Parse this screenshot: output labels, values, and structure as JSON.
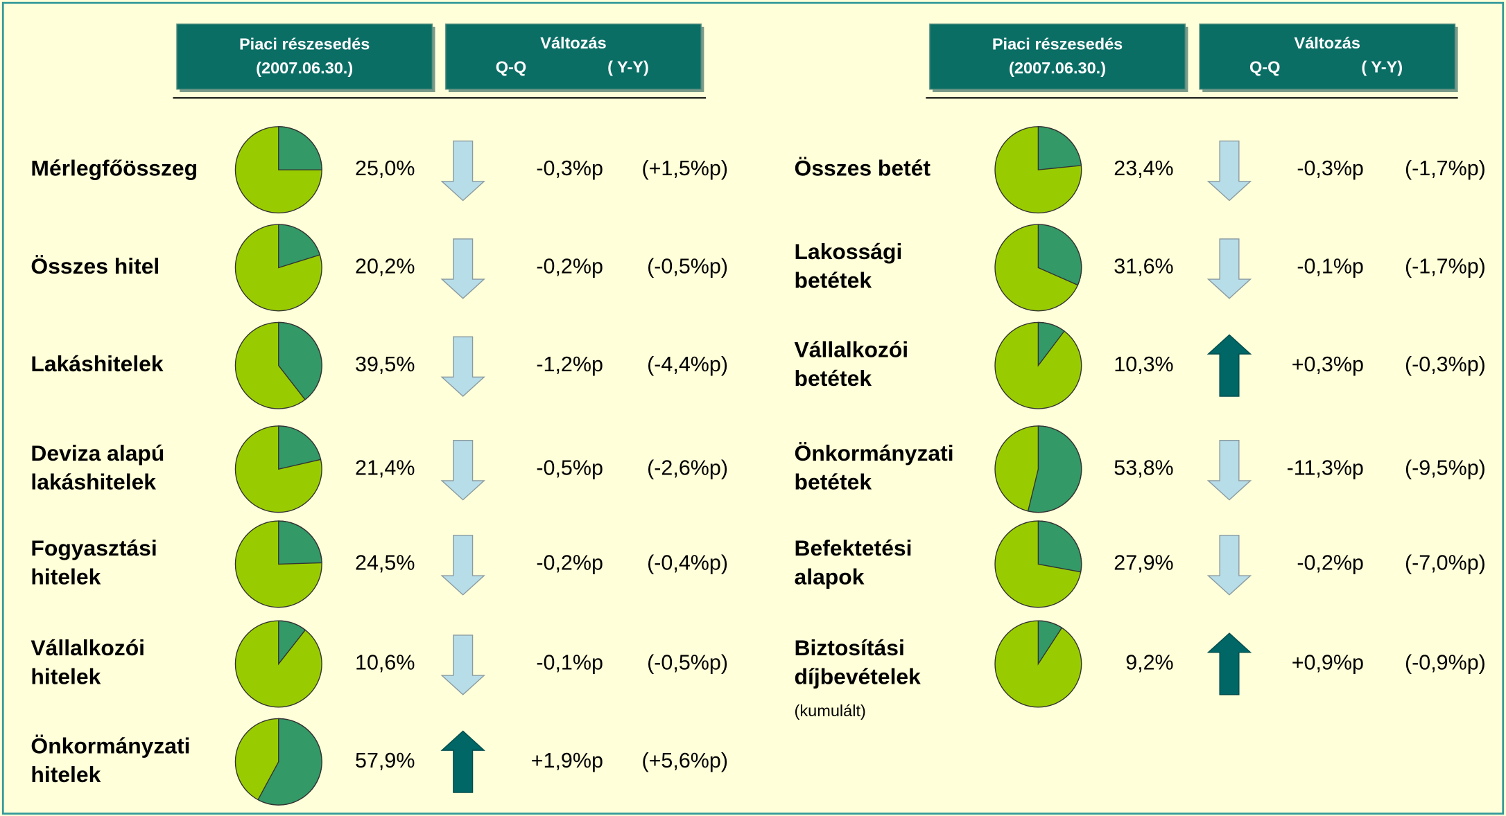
{
  "panels": [
    {
      "headers": {
        "share": [
          "Piaci részesedés",
          "(2007.06.30.)"
        ],
        "change": [
          "Változás",
          "Q-Q",
          "( Y-Y)"
        ]
      },
      "rows": [
        {
          "label": [
            "Mérlegfőösszeg"
          ],
          "share": 25.0,
          "share_label": "25,0%",
          "qq": -0.3,
          "qq_label": "-0,3%p",
          "yy_label": "(+1,5%p)"
        },
        {
          "label": [
            "Összes hitel"
          ],
          "share": 20.2,
          "share_label": "20,2%",
          "qq": -0.2,
          "qq_label": "-0,2%p",
          "yy_label": "(-0,5%p)"
        },
        {
          "label": [
            "Lakáshitelek"
          ],
          "share": 39.5,
          "share_label": "39,5%",
          "qq": -1.2,
          "qq_label": "-1,2%p",
          "yy_label": "(-4,4%p)"
        },
        {
          "label": [
            "Deviza alapú",
            "lakáshitelek"
          ],
          "share": 21.4,
          "share_label": "21,4%",
          "qq": -0.5,
          "qq_label": "-0,5%p",
          "yy_label": "(-2,6%p)"
        },
        {
          "label": [
            "Fogyasztási",
            "hitelek"
          ],
          "share": 24.5,
          "share_label": "24,5%",
          "qq": -0.2,
          "qq_label": "-0,2%p",
          "yy_label": "(-0,4%p)"
        },
        {
          "label": [
            "Vállalkozói",
            "hitelek"
          ],
          "share": 10.6,
          "share_label": "10,6%",
          "qq": -0.1,
          "qq_label": "-0,1%p",
          "yy_label": "(-0,5%p)"
        },
        {
          "label": [
            "Önkormányzati",
            "hitelek"
          ],
          "share": 57.9,
          "share_label": "57,9%",
          "qq": 1.9,
          "qq_label": "+1,9%p",
          "yy_label": "(+5,6%p)"
        }
      ]
    },
    {
      "headers": {
        "share": [
          "Piaci részesedés",
          "(2007.06.30.)"
        ],
        "change": [
          "Változás",
          "Q-Q",
          "( Y-Y)"
        ]
      },
      "rows": [
        {
          "label": [
            "Összes betét"
          ],
          "share": 23.4,
          "share_label": "23,4%",
          "qq": -0.3,
          "qq_label": "-0,3%p",
          "yy_label": "(-1,7%p)"
        },
        {
          "label": [
            "Lakossági",
            "betétek"
          ],
          "share": 31.6,
          "share_label": "31,6%",
          "qq": -0.1,
          "qq_label": "-0,1%p",
          "yy_label": "(-1,7%p)"
        },
        {
          "label": [
            "Vállalkozói",
            "betétek"
          ],
          "share": 10.3,
          "share_label": "10,3%",
          "qq": 0.3,
          "qq_label": "+0,3%p",
          "yy_label": "(-0,3%p)"
        },
        {
          "label": [
            "Önkormányzati",
            "betétek"
          ],
          "share": 53.8,
          "share_label": "53,8%",
          "qq": -11.3,
          "qq_label": "-11,3%p",
          "yy_label": "(-9,5%p)"
        },
        {
          "label": [
            "Befektetési",
            "alapok"
          ],
          "share": 27.9,
          "share_label": "27,9%",
          "qq": -0.2,
          "qq_label": "-0,2%p",
          "yy_label": "(-7,0%p)"
        },
        {
          "label": [
            "Biztosítási",
            "díjbevételek"
          ],
          "note": "(kumulált)",
          "share": 9.2,
          "share_label": "9,2%",
          "qq": 0.9,
          "qq_label": "+0,9%p",
          "yy_label": "(-0,9%p)"
        }
      ]
    }
  ]
}
